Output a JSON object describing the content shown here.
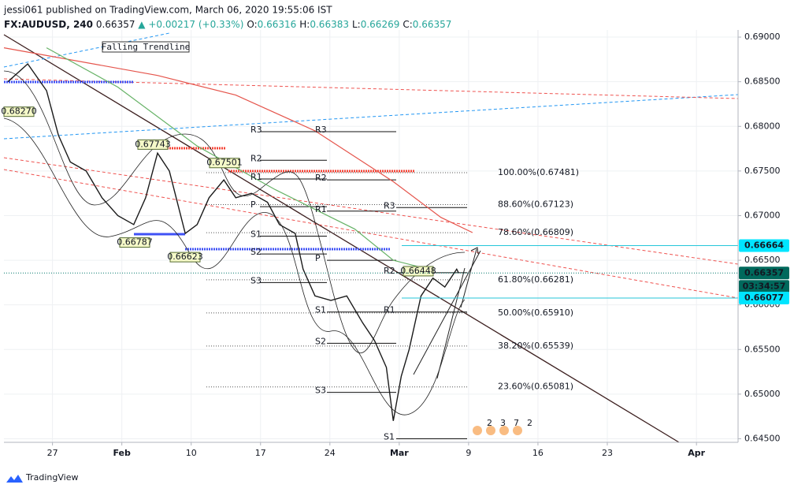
{
  "header": {
    "publisher": "jessi061 published on TradingView.com, March 06, 2020 19:55:06 IST",
    "symbol": "FX:AUDUSD, 240",
    "last": "0.66357",
    "change": "▲ +0.00217 (+0.33%)",
    "ohlc": [
      {
        "key": "O:",
        "value": "0.66316"
      },
      {
        "key": "H:",
        "value": "0.66383"
      },
      {
        "key": "L:",
        "value": "0.66269"
      },
      {
        "key": "C:",
        "value": "0.66357"
      }
    ]
  },
  "chart_data": {
    "type": "line",
    "xlim": [
      -4.9,
      69.2
    ],
    "xticks": [
      {
        "value": 0,
        "label": "27"
      },
      {
        "value": 7,
        "label": "Feb"
      },
      {
        "value": 14,
        "label": "10"
      },
      {
        "value": 21,
        "label": "17"
      },
      {
        "value": 28,
        "label": "24"
      },
      {
        "value": 35,
        "label": "Mar"
      },
      {
        "value": 42,
        "label": "9"
      },
      {
        "value": 49,
        "label": "16"
      },
      {
        "value": 56,
        "label": "23"
      },
      {
        "value": 65,
        "label": "Apr"
      }
    ],
    "ylim": [
      0.6446,
      0.6908
    ],
    "yticks": [
      {
        "value": 0.645,
        "label": "0.64500"
      },
      {
        "value": 0.65,
        "label": "0.65000"
      },
      {
        "value": 0.655,
        "label": "0.65500"
      },
      {
        "value": 0.66,
        "label": "0.66000"
      },
      {
        "value": 0.665,
        "label": "0.66500"
      },
      {
        "value": 0.67,
        "label": "0.67000"
      },
      {
        "value": 0.675,
        "label": "0.67500"
      },
      {
        "value": 0.68,
        "label": "0.68000"
      },
      {
        "value": 0.685,
        "label": "0.68500"
      },
      {
        "value": 0.69,
        "label": "0.69000"
      }
    ],
    "grid": true,
    "series": [
      {
        "color": "#1a1a1a",
        "x": [
          -4.5,
          -2.5,
          -0.6,
          0.6,
          1.8,
          3.4,
          5.0,
          6.6,
          8.2,
          9.4,
          10.6,
          11.8,
          13.4,
          14.6,
          15.8,
          17.3,
          18.5,
          20.1,
          21.7,
          22.9,
          24.5,
          25.3,
          26.5,
          28.1,
          29.7,
          31.3,
          32.5,
          33.7,
          34.4,
          35.2,
          36.0,
          37.2,
          38.4,
          39.6,
          40.8,
          41.0
        ],
        "values": [
          0.685,
          0.687,
          0.684,
          0.679,
          0.676,
          0.675,
          0.672,
          0.67,
          0.669,
          0.672,
          0.677,
          0.675,
          0.668,
          0.669,
          0.672,
          0.674,
          0.672,
          0.6725,
          0.6715,
          0.669,
          0.668,
          0.664,
          0.661,
          0.6605,
          0.661,
          0.658,
          0.656,
          0.653,
          0.647,
          0.652,
          0.655,
          0.661,
          0.663,
          0.662,
          0.664,
          0.66357
        ]
      },
      {
        "color": "#e5544b",
        "x": [
          -4.9,
          10.6,
          18.5,
          26.5,
          34.4,
          39.2,
          42.4
        ],
        "values": [
          0.6888,
          0.6857,
          0.6835,
          0.6795,
          0.6738,
          0.6698,
          0.6681
        ]
      },
      {
        "color": "#66b266",
        "x": [
          -0.6,
          6.6,
          14.6,
          22.5,
          30.5,
          34.4,
          37.6
        ],
        "values": [
          0.6888,
          0.6844,
          0.6778,
          0.6729,
          0.6685,
          0.665,
          0.6641
        ]
      }
    ],
    "fib_levels": [
      {
        "label": "100.00%(0.67481)",
        "value": 0.67481
      },
      {
        "label": "88.60%(0.67123)",
        "value": 0.67123
      },
      {
        "label": "78.60%(0.66809)",
        "value": 0.66809
      },
      {
        "label": "61.80%(0.66281)",
        "value": 0.66281
      },
      {
        "label": "50.00%(0.65910)",
        "value": 0.6591
      },
      {
        "label": "38.20%(0.65539)",
        "value": 0.65539
      },
      {
        "label": "23.60%(0.65081)",
        "value": 0.65081
      }
    ],
    "pivots": [
      {
        "label": "R3",
        "value": 0.6794
      },
      {
        "label": "R2",
        "value": 0.6762
      },
      {
        "label": "R1",
        "value": 0.6741
      },
      {
        "label": "P",
        "value": 0.671
      },
      {
        "label": "S1",
        "value": 0.6677
      },
      {
        "label": "S2",
        "value": 0.6657
      },
      {
        "label": "S3",
        "value": 0.6625
      },
      {
        "label": "R3",
        "value": 0.6794
      },
      {
        "label": "R2",
        "value": 0.674
      },
      {
        "label": "R1",
        "value": 0.6705
      },
      {
        "label": "P",
        "value": 0.665
      },
      {
        "label": "S1",
        "value": 0.6592
      },
      {
        "label": "S2",
        "value": 0.6557
      },
      {
        "label": "S3",
        "value": 0.6502
      },
      {
        "label": "R3",
        "value": 0.6709
      },
      {
        "label": "R2",
        "value": 0.6636
      },
      {
        "label": "R1",
        "value": 0.6592
      },
      {
        "label": "S1",
        "value": 0.645
      }
    ],
    "callouts": [
      {
        "value": 0.6827,
        "label": "0.68270"
      },
      {
        "value": 0.67743,
        "label": "0.67743"
      },
      {
        "value": 0.67501,
        "label": "0.67501"
      },
      {
        "value": 0.66787,
        "label": "0.66787"
      },
      {
        "value": 0.66623,
        "label": "0.66623"
      },
      {
        "value": 0.66448,
        "label": "0.66448"
      }
    ],
    "annotation": "Falling Trendline",
    "price_labels": [
      {
        "value": 0.66664,
        "label": "0.66664",
        "kind": "line"
      },
      {
        "value": 0.66357,
        "label": "0.66357",
        "kind": "last"
      },
      {
        "value": 0.66077,
        "label": "0.66077",
        "kind": "line"
      }
    ],
    "countdown": "03:34:57",
    "event_markers": [
      "2",
      "3",
      "7",
      "2"
    ]
  },
  "footer": {
    "brand": "TradingView"
  }
}
